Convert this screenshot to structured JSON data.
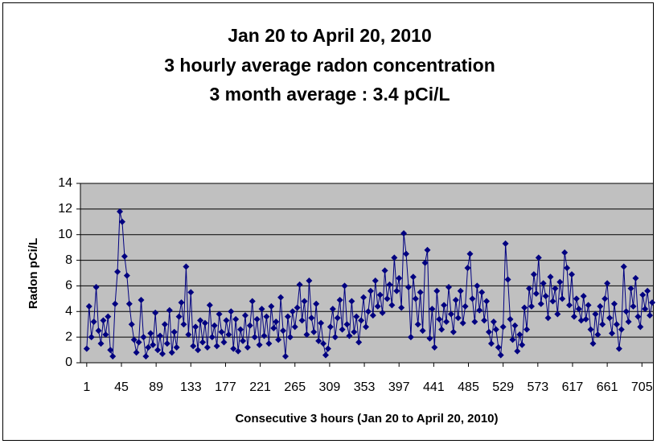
{
  "chart_data": {
    "type": "line",
    "title": [
      "Jan 20 to April 20, 2010",
      "3 hourly average radon concentration",
      "3 month average : 3.4 pCi/L"
    ],
    "y_label": "Radon pCi/L",
    "x_label": "Consecutive 3 hours (Jan 20 to April 20, 2010)",
    "color": "#000080",
    "x": [
      1,
      4,
      7,
      10,
      13,
      16,
      19,
      22,
      25,
      28,
      31,
      34,
      37,
      40,
      43,
      46,
      49,
      52,
      55,
      58,
      61,
      64,
      67,
      70,
      73,
      76,
      79,
      82,
      85,
      88,
      91,
      94,
      97,
      100,
      103,
      106,
      109,
      112,
      115,
      118,
      121,
      124,
      127,
      130,
      133,
      136,
      139,
      142,
      145,
      148,
      151,
      154,
      157,
      160,
      163,
      166,
      169,
      172,
      175,
      178,
      181,
      184,
      187,
      190,
      193,
      196,
      199,
      202,
      205,
      208,
      211,
      214,
      217,
      220,
      223,
      226,
      229,
      232,
      235,
      238,
      241,
      244,
      247,
      250,
      253,
      256,
      259,
      262,
      265,
      268,
      271,
      274,
      277,
      280,
      283,
      286,
      289,
      292,
      295,
      298,
      301,
      304,
      307,
      310,
      313,
      316,
      319,
      322,
      325,
      328,
      331,
      334,
      337,
      340,
      343,
      346,
      349,
      352,
      355,
      358,
      361,
      364,
      367,
      370,
      373,
      376,
      379,
      382,
      385,
      388,
      391,
      394,
      397,
      400,
      403,
      406,
      409,
      412,
      415,
      418,
      421,
      424,
      427,
      430,
      433,
      436,
      439,
      442,
      445,
      448,
      451,
      454,
      457,
      460,
      463,
      466,
      469,
      472,
      475,
      478,
      481,
      484,
      487,
      490,
      493,
      496,
      499,
      502,
      505,
      508,
      511,
      514,
      517,
      520,
      523,
      526,
      529,
      532,
      535,
      538,
      541,
      544,
      547,
      550,
      553,
      556,
      559,
      562,
      565,
      568,
      571,
      574,
      577,
      580,
      583,
      586,
      589,
      592,
      595,
      598,
      601,
      604,
      607,
      610,
      613,
      616,
      619,
      622,
      625,
      628,
      631,
      634,
      637,
      640,
      643,
      646,
      649,
      652,
      655,
      658,
      661,
      664,
      667,
      670,
      673,
      676,
      679,
      682,
      685,
      688,
      691,
      694,
      697,
      700,
      703,
      706,
      709,
      712,
      715,
      718
    ],
    "values": [
      1.1,
      4.4,
      2.0,
      3.2,
      5.9,
      2.5,
      1.5,
      3.3,
      2.2,
      3.6,
      1.0,
      0.5,
      4.6,
      7.1,
      11.8,
      11.0,
      8.3,
      6.8,
      4.6,
      3.0,
      1.8,
      0.8,
      1.6,
      4.9,
      2.0,
      0.5,
      1.2,
      2.3,
      1.4,
      3.9,
      1.0,
      2.1,
      0.7,
      3.0,
      1.5,
      4.1,
      0.8,
      2.4,
      1.2,
      3.6,
      4.7,
      3.0,
      7.5,
      2.2,
      5.5,
      1.3,
      2.8,
      1.0,
      3.3,
      1.6,
      3.1,
      1.2,
      4.5,
      2.0,
      2.9,
      1.3,
      3.8,
      2.4,
      1.6,
      3.3,
      2.2,
      4.0,
      1.1,
      3.4,
      0.9,
      2.6,
      1.7,
      3.7,
      1.2,
      2.9,
      4.8,
      2.0,
      3.4,
      1.4,
      4.2,
      2.1,
      3.6,
      1.5,
      4.4,
      2.7,
      3.2,
      1.8,
      5.1,
      2.5,
      0.5,
      3.6,
      2.0,
      4.0,
      2.8,
      4.3,
      6.1,
      3.3,
      4.8,
      2.2,
      6.4,
      3.5,
      2.4,
      4.6,
      1.7,
      3.1,
      1.5,
      0.6,
      1.1,
      2.8,
      4.2,
      2.0,
      3.5,
      4.9,
      2.6,
      6.0,
      3.0,
      2.1,
      4.8,
      2.4,
      3.6,
      1.6,
      3.3,
      5.1,
      2.8,
      4.0,
      5.6,
      3.7,
      6.4,
      4.4,
      5.3,
      3.9,
      7.2,
      5.0,
      6.1,
      4.5,
      8.2,
      5.6,
      6.6,
      4.3,
      10.1,
      8.5,
      5.9,
      2.0,
      6.7,
      5.0,
      3.0,
      5.5,
      2.5,
      7.8,
      8.8,
      1.9,
      4.2,
      1.2,
      5.6,
      3.4,
      2.6,
      4.5,
      3.2,
      5.9,
      3.8,
      2.4,
      4.9,
      3.5,
      5.6,
      3.1,
      4.4,
      7.4,
      8.5,
      5.0,
      3.2,
      6.0,
      4.1,
      5.5,
      3.3,
      4.8,
      2.4,
      1.5,
      3.2,
      2.6,
      1.2,
      0.6,
      2.8,
      9.3,
      6.5,
      3.4,
      1.8,
      2.9,
      0.9,
      2.2,
      1.4,
      4.3,
      2.6,
      5.8,
      4.4,
      6.9,
      5.4,
      8.2,
      4.6,
      6.2,
      5.2,
      3.5,
      6.7,
      4.8,
      5.8,
      3.8,
      6.3,
      5.0,
      8.6,
      7.4,
      4.5,
      6.9,
      3.6,
      5.0,
      4.2,
      3.3,
      5.2,
      3.4,
      4.5,
      2.6,
      1.5,
      3.8,
      2.2,
      4.4,
      3.0,
      5.0,
      6.2,
      3.5,
      2.3,
      4.6,
      3.0,
      1.1,
      2.6,
      7.5,
      4.0,
      3.2,
      5.8,
      4.4,
      6.6,
      3.6,
      2.8,
      5.3,
      4.2,
      5.6,
      3.7,
      4.7
    ],
    "xlim": [
      -7,
      719
    ],
    "xticks": [
      1,
      45,
      89,
      133,
      177,
      221,
      265,
      309,
      353,
      397,
      441,
      485,
      529,
      573,
      617,
      661,
      705
    ],
    "ylim": [
      0,
      14
    ],
    "yticks": [
      0,
      2,
      4,
      6,
      8,
      10,
      12,
      14
    ],
    "grid": true
  }
}
